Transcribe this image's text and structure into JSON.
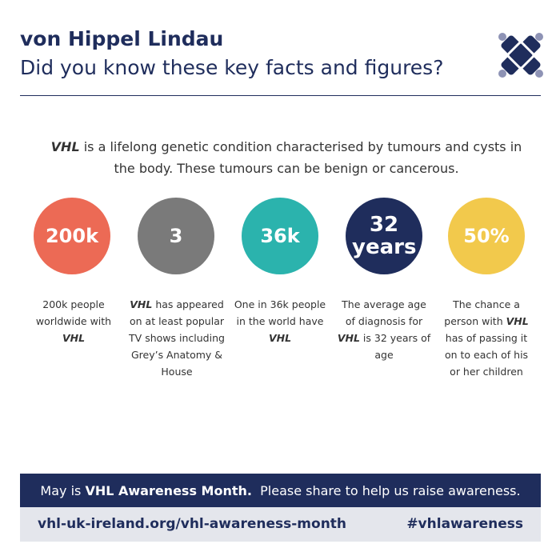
{
  "header": {
    "title": "von Hippel Lindau",
    "subtitle": "Did you know these key facts and figures?"
  },
  "intro": [
    "VHL",
    " is a lifelong genetic condition characterised by tumours and cysts in the body.  These tumours can be benign or cancerous."
  ],
  "stats": [
    {
      "figure": "200k",
      "description": [
        "200k people worldwide with ",
        "VHL"
      ]
    },
    {
      "figure": "3",
      "description": [
        "VHL",
        " has appeared on at least popular TV shows including Grey’s Anatomy & House"
      ]
    },
    {
      "figure": "36k",
      "description": [
        "One in 36k people in the world have ",
        "VHL"
      ]
    },
    {
      "figure": "32 years",
      "description": [
        "The average age of diagnosis for ",
        "VHL",
        " is 32 years of age"
      ]
    },
    {
      "figure": "50%",
      "description": [
        "The chance a person with ",
        "VHL",
        " has of passing it on to each of his or her children"
      ]
    }
  ],
  "footer": {
    "banner": [
      "May is ",
      "VHL Awareness Month.",
      "  Please share to help us raise awareness."
    ],
    "url": "vhl-uk-ireland.org/vhl-awareness-month",
    "hashtag": "#vhlawareness"
  }
}
